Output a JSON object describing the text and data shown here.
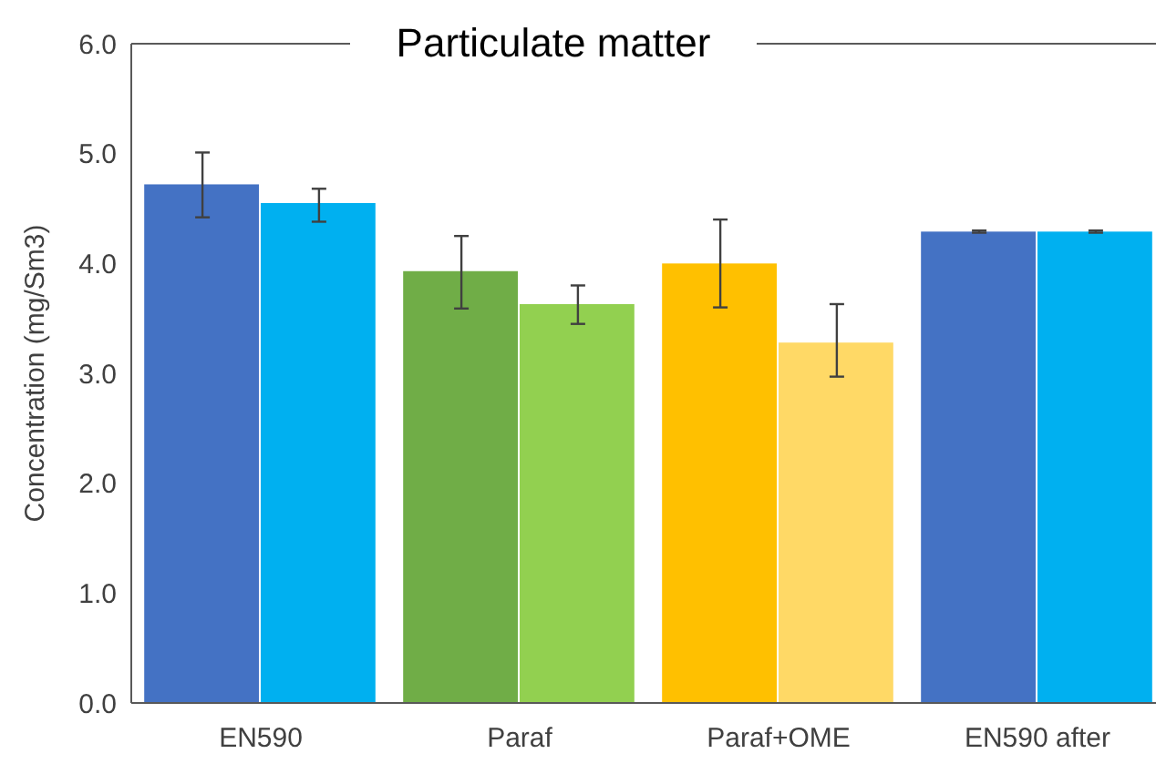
{
  "chart_data": {
    "type": "bar",
    "title": "Particulate matter",
    "ylabel": "Concentration (mg/Sm3)",
    "categories": [
      "EN590",
      "Paraf",
      "Paraf+OME",
      "EN590 after"
    ],
    "series": [
      {
        "colors": [
          "#4472c4",
          "#70ad47",
          "#ffc000",
          "#4472c4"
        ],
        "values": [
          4.72,
          3.93,
          4.0,
          4.29
        ],
        "errors": [
          [
            4.42,
            5.01
          ],
          [
            3.59,
            4.25
          ],
          [
            3.6,
            4.4
          ],
          [
            4.28,
            4.3
          ]
        ]
      },
      {
        "colors": [
          "#00b0f0",
          "#92d050",
          "#ffd966",
          "#00b0f0"
        ],
        "values": [
          4.55,
          3.63,
          3.28,
          4.29
        ],
        "errors": [
          [
            4.38,
            4.68
          ],
          [
            3.45,
            3.8
          ],
          [
            2.97,
            3.63
          ],
          [
            4.28,
            4.3
          ]
        ]
      }
    ],
    "ylim": [
      0,
      6
    ],
    "yticks": [
      {
        "value": 0,
        "label": "0.0"
      },
      {
        "value": 1,
        "label": "1.0"
      },
      {
        "value": 2,
        "label": "2.0"
      },
      {
        "value": 3,
        "label": "3.0"
      },
      {
        "value": 4,
        "label": "4.0"
      },
      {
        "value": 5,
        "label": "5.0"
      },
      {
        "value": 6,
        "label": "6.0"
      }
    ],
    "grid": false
  }
}
